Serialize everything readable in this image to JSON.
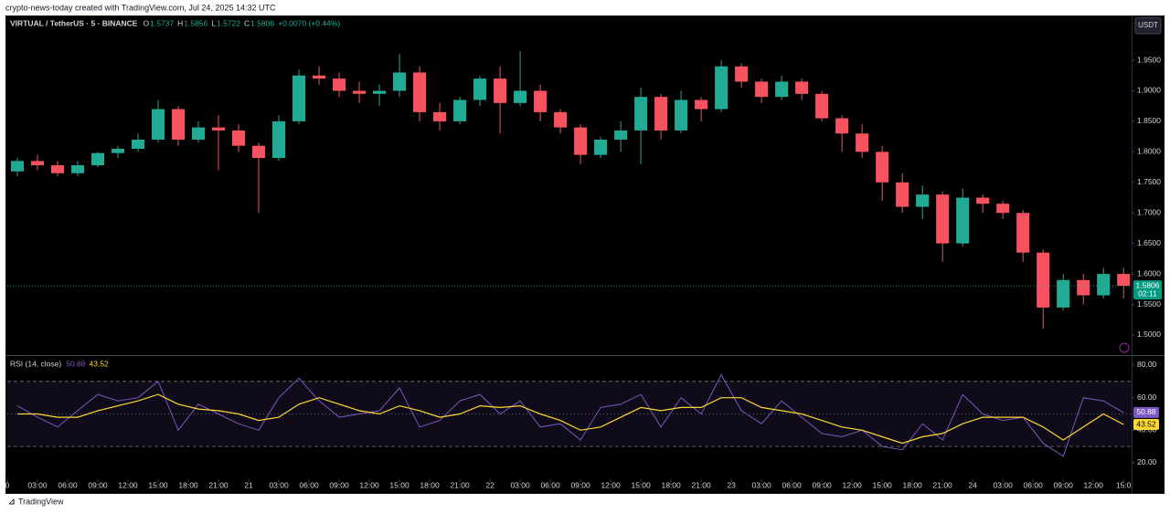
{
  "banner": "crypto-news-today created with TradingView.com, Jul 24, 2025 14:32 UTC",
  "symbol": "VIRTUAL / TetherUS · 5 · BINANCE",
  "ohlc": [
    {
      "label": "O",
      "value": "1.5737"
    },
    {
      "label": "H",
      "value": "1.5856"
    },
    {
      "label": "L",
      "value": "1.5722"
    },
    {
      "label": "C",
      "value": "1.5806"
    }
  ],
  "change": "+0.0070 (+0.44%)",
  "currency_button": "USDT",
  "countdown": "02:11",
  "footer": "TradingView",
  "chart_data": [
    {
      "type": "candlestick",
      "x": [
        1,
        3,
        5,
        7,
        9,
        11,
        13,
        15,
        17,
        19,
        21,
        23,
        25,
        27,
        29,
        31,
        33,
        35,
        37,
        39,
        41,
        43,
        45,
        47,
        49,
        51,
        53,
        55,
        57,
        59,
        61,
        63,
        65,
        67,
        69,
        71,
        73,
        75,
        77,
        79,
        81,
        83,
        85,
        87,
        89,
        91,
        93,
        95,
        97,
        99,
        101,
        103,
        105,
        107,
        109,
        111
      ],
      "open": [
        1.768,
        1.785,
        1.778,
        1.765,
        1.778,
        1.798,
        1.805,
        1.82,
        1.87,
        1.82,
        1.84,
        1.835,
        1.81,
        1.79,
        1.85,
        1.925,
        1.92,
        1.9,
        1.895,
        1.9,
        1.93,
        1.865,
        1.85,
        1.885,
        1.92,
        1.88,
        1.9,
        1.865,
        1.84,
        1.795,
        1.82,
        1.835,
        1.89,
        1.835,
        1.885,
        1.87,
        1.94,
        1.915,
        1.89,
        1.915,
        1.895,
        1.855,
        1.83,
        1.8,
        1.75,
        1.71,
        1.73,
        1.65,
        1.725,
        1.715,
        1.7,
        1.635,
        1.545,
        1.59,
        1.565,
        1.6
      ],
      "high": [
        1.79,
        1.795,
        1.785,
        1.785,
        1.8,
        1.81,
        1.83,
        1.885,
        1.875,
        1.85,
        1.86,
        1.845,
        1.815,
        1.86,
        1.935,
        1.94,
        1.93,
        1.915,
        1.91,
        1.96,
        1.94,
        1.88,
        1.89,
        1.925,
        1.94,
        1.965,
        1.91,
        1.87,
        1.845,
        1.825,
        1.85,
        1.905,
        1.895,
        1.9,
        1.89,
        1.95,
        1.945,
        1.92,
        1.925,
        1.92,
        1.9,
        1.86,
        1.845,
        1.81,
        1.765,
        1.745,
        1.735,
        1.74,
        1.73,
        1.72,
        1.705,
        1.64,
        1.6,
        1.6,
        1.61,
        1.61
      ],
      "low": [
        1.76,
        1.77,
        1.76,
        1.76,
        1.775,
        1.79,
        1.8,
        1.815,
        1.81,
        1.815,
        1.77,
        1.8,
        1.7,
        1.785,
        1.845,
        1.91,
        1.89,
        1.88,
        1.875,
        1.89,
        1.85,
        1.835,
        1.845,
        1.875,
        1.83,
        1.875,
        1.85,
        1.83,
        1.78,
        1.79,
        1.8,
        1.78,
        1.82,
        1.83,
        1.85,
        1.865,
        1.905,
        1.88,
        1.885,
        1.885,
        1.85,
        1.8,
        1.79,
        1.72,
        1.7,
        1.69,
        1.62,
        1.645,
        1.7,
        1.69,
        1.62,
        1.51,
        1.54,
        1.55,
        1.56,
        1.56
      ],
      "close": [
        1.785,
        1.778,
        1.765,
        1.778,
        1.798,
        1.805,
        1.82,
        1.87,
        1.82,
        1.84,
        1.835,
        1.81,
        1.79,
        1.85,
        1.925,
        1.92,
        1.9,
        1.895,
        1.9,
        1.93,
        1.865,
        1.85,
        1.885,
        1.92,
        1.88,
        1.9,
        1.865,
        1.84,
        1.795,
        1.82,
        1.835,
        1.89,
        1.835,
        1.885,
        1.87,
        1.94,
        1.915,
        1.89,
        1.915,
        1.895,
        1.855,
        1.83,
        1.8,
        1.75,
        1.71,
        1.73,
        1.65,
        1.725,
        1.715,
        1.7,
        1.635,
        1.545,
        1.59,
        1.565,
        1.6,
        1.5806
      ],
      "up_color": "#22ab94",
      "down_color": "#f7525f",
      "xlim": [
        0,
        111.8
      ],
      "ylim": [
        1.4671,
        2.0233
      ],
      "yticks": [
        {
          "value": 1.5,
          "label": "1.5000"
        },
        {
          "value": 1.55,
          "label": "1.5500"
        },
        {
          "value": 1.6,
          "label": "1.6000"
        },
        {
          "value": 1.65,
          "label": "1.6500"
        },
        {
          "value": 1.7,
          "label": "1.7000"
        },
        {
          "value": 1.75,
          "label": "1.7500"
        },
        {
          "value": 1.8,
          "label": "1.8000"
        },
        {
          "value": 1.85,
          "label": "1.8500"
        },
        {
          "value": 1.9,
          "label": "1.9000"
        },
        {
          "value": 1.95,
          "label": "1.9500"
        }
      ],
      "xticks": [
        {
          "value": 0,
          "label": "0"
        },
        {
          "value": 3,
          "label": "03:00"
        },
        {
          "value": 6,
          "label": "06:00"
        },
        {
          "value": 9,
          "label": "09:00"
        },
        {
          "value": 12,
          "label": "12:00"
        },
        {
          "value": 15,
          "label": "15:00"
        },
        {
          "value": 18,
          "label": "18:00"
        },
        {
          "value": 21,
          "label": "21:00"
        },
        {
          "value": 24,
          "label": "21"
        },
        {
          "value": 27,
          "label": "03:00"
        },
        {
          "value": 30,
          "label": "06:00"
        },
        {
          "value": 33,
          "label": "09:00"
        },
        {
          "value": 36,
          "label": "12:00"
        },
        {
          "value": 39,
          "label": "15:00"
        },
        {
          "value": 42,
          "label": "18:00"
        },
        {
          "value": 45,
          "label": "21:00"
        },
        {
          "value": 48,
          "label": "22"
        },
        {
          "value": 51,
          "label": "03:00"
        },
        {
          "value": 54,
          "label": "06:00"
        },
        {
          "value": 57,
          "label": "09:00"
        },
        {
          "value": 60,
          "label": "12:00"
        },
        {
          "value": 63,
          "label": "15:00"
        },
        {
          "value": 66,
          "label": "18:00"
        },
        {
          "value": 69,
          "label": "21:00"
        },
        {
          "value": 72,
          "label": "23"
        },
        {
          "value": 75,
          "label": "03:00"
        },
        {
          "value": 78,
          "label": "06:00"
        },
        {
          "value": 81,
          "label": "09:00"
        },
        {
          "value": 84,
          "label": "12:00"
        },
        {
          "value": 87,
          "label": "15:00"
        },
        {
          "value": 90,
          "label": "18:00"
        },
        {
          "value": 93,
          "label": "21:00"
        },
        {
          "value": 96,
          "label": "24"
        },
        {
          "value": 99,
          "label": "03:00"
        },
        {
          "value": 102,
          "label": "06:00"
        },
        {
          "value": 105,
          "label": "09:00"
        },
        {
          "value": 108,
          "label": "12:00"
        },
        {
          "value": 111,
          "label": "15:0"
        }
      ]
    },
    {
      "type": "line",
      "title": "RSI (14, close)",
      "x": [
        1,
        3,
        5,
        7,
        9,
        11,
        13,
        15,
        17,
        19,
        21,
        23,
        25,
        27,
        29,
        31,
        33,
        35,
        37,
        39,
        41,
        43,
        45,
        47,
        49,
        51,
        53,
        55,
        57,
        59,
        61,
        63,
        65,
        67,
        69,
        71,
        73,
        75,
        77,
        79,
        81,
        83,
        85,
        87,
        89,
        91,
        93,
        95,
        97,
        99,
        101,
        103,
        105,
        107,
        109,
        111
      ],
      "series": [
        {
          "color": "#7e57c2",
          "values": [
            55,
            48,
            42,
            52,
            62,
            58,
            60,
            70,
            40,
            56,
            50,
            44,
            40,
            60,
            72,
            58,
            48,
            50,
            52,
            66,
            42,
            46,
            58,
            62,
            50,
            58,
            42,
            44,
            34,
            54,
            56,
            62,
            42,
            60,
            50,
            74,
            52,
            44,
            58,
            48,
            38,
            36,
            40,
            30,
            28,
            44,
            34,
            62,
            50,
            46,
            48,
            32,
            24,
            60,
            58,
            50.88
          ]
        },
        {
          "color": "#fdd835",
          "values": [
            50,
            50,
            48,
            48,
            52,
            55,
            58,
            62,
            56,
            53,
            52,
            50,
            46,
            48,
            56,
            60,
            56,
            52,
            50,
            55,
            52,
            48,
            50,
            55,
            54,
            55,
            50,
            46,
            40,
            42,
            48,
            54,
            52,
            54,
            54,
            60,
            60,
            54,
            52,
            50,
            46,
            42,
            40,
            36,
            32,
            36,
            38,
            44,
            48,
            48,
            48,
            42,
            34,
            42,
            50,
            43.52
          ]
        }
      ],
      "band": [
        30,
        70
      ],
      "midline": 50,
      "xlim": [
        0,
        111.8
      ],
      "ylim": [
        9.9,
        85.6
      ],
      "yticks": [
        {
          "value": 20,
          "label": "20.00"
        },
        {
          "value": 40,
          "label": "40.00"
        },
        {
          "value": 60,
          "label": "60.00"
        },
        {
          "value": 80,
          "label": "80.00"
        }
      ]
    }
  ]
}
